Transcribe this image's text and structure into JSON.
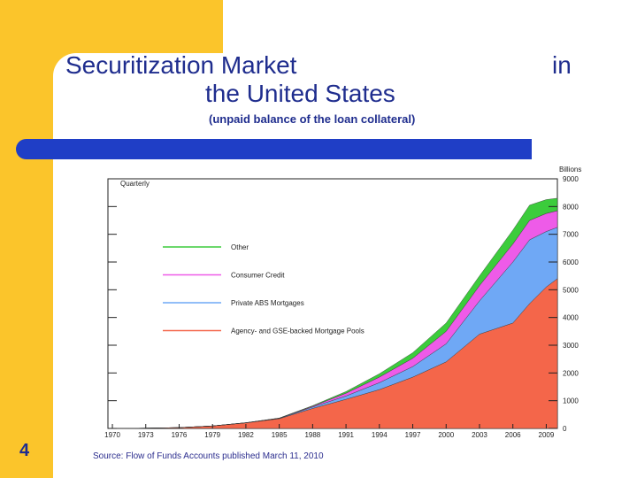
{
  "slide": {
    "title_line1": "Securitization Market",
    "title_line2": "the United States",
    "title_word_in": "in",
    "subtitle": "(unpaid balance of the loan collateral)",
    "slide_number": "4",
    "source": "Source: Flow of Funds Accounts published March 11, 2010"
  },
  "colors": {
    "accent_yellow": "#fbc52b",
    "bar_blue": "#1f3ec6",
    "title_blue": "#1f2d8e",
    "agency": "#f4664a",
    "private_abs": "#6fa8f5",
    "consumer_credit": "#ee5be8",
    "other": "#3ccc3c"
  },
  "chart_data": {
    "type": "area",
    "stacked": true,
    "frequency_label": "Quarterly",
    "units_label": "Billions",
    "x": [
      1970,
      1973,
      1976,
      1979,
      1982,
      1985,
      1988,
      1991,
      1994,
      1997,
      2000,
      2003,
      2006,
      2007.5,
      2009,
      2010
    ],
    "x_ticks": [
      "1970",
      "1973",
      "1976",
      "1979",
      "1982",
      "1985",
      "1988",
      "1991",
      "1994",
      "1997",
      "2000",
      "2003",
      "2006",
      "2009"
    ],
    "x_range": [
      1969.6,
      2010
    ],
    "y_ticks": [
      "0",
      "1000",
      "2000",
      "3000",
      "4000",
      "5000",
      "6000",
      "7000",
      "8000",
      "9000"
    ],
    "ylim": [
      0,
      9000
    ],
    "legend_position": "upper-left",
    "series": [
      {
        "name": "Agency- and GSE-backed Mortgage Pools",
        "key": "agency",
        "values": [
          0,
          10,
          30,
          90,
          200,
          350,
          720,
          1050,
          1400,
          1850,
          2400,
          3400,
          3800,
          4500,
          5100,
          5400
        ]
      },
      {
        "name": "Private ABS Mortgages",
        "key": "private_abs",
        "values": [
          0,
          0,
          0,
          0,
          5,
          15,
          50,
          120,
          250,
          380,
          650,
          1200,
          2200,
          2300,
          2000,
          1850
        ]
      },
      {
        "name": "Consumer Credit",
        "key": "consumer_credit",
        "values": [
          0,
          0,
          0,
          0,
          0,
          5,
          30,
          100,
          200,
          300,
          450,
          550,
          650,
          700,
          650,
          600
        ]
      },
      {
        "name": "Other",
        "key": "other",
        "values": [
          0,
          0,
          0,
          0,
          0,
          5,
          20,
          60,
          120,
          200,
          300,
          350,
          500,
          550,
          500,
          450
        ]
      }
    ]
  }
}
